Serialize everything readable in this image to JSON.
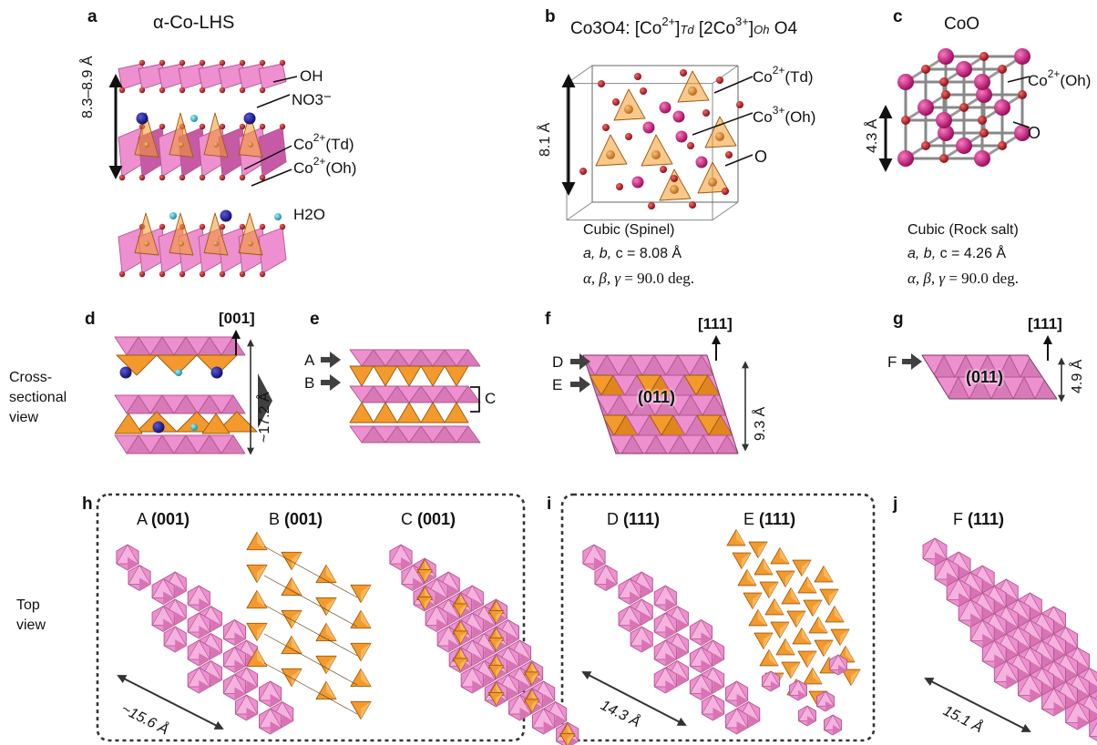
{
  "colors": {
    "pink": "#ee8fcf",
    "pink_dark": "#b0588f",
    "orange": "#f49a2c",
    "orange_dark": "#9a5a10",
    "navy": "#1b1b8c",
    "cyan": "#38b8c8",
    "magenta": "#d0177a",
    "red": "#c0141c",
    "arrow": "#333333"
  },
  "panels": {
    "a": {
      "label": "a",
      "title": "α-Co-LHS",
      "dim": "8.3–8.9 Å",
      "oh": "OH",
      "no3": "NO3",
      "no3_charge": "−",
      "co_td_sup": "2+",
      "co_td": "Co",
      "co_td_site": "(Td)",
      "co_oh_sup": "2+",
      "co_oh": "Co",
      "co_oh_site": "(Oh)",
      "h2o": "H2O"
    },
    "b": {
      "label": "b",
      "title_parts": [
        "Co3O4: [Co",
        "2+",
        "]",
        "Td",
        " [2Co",
        "3+",
        "]",
        "Oh",
        " O4"
      ],
      "dim": "8.1 Å",
      "co_td": "Co",
      "co_td_sup": "2+",
      "co_td_site": "(Td)",
      "co_oh": "Co",
      "co_oh_sup": "3+",
      "co_oh_site": "(Oh)",
      "o": "O",
      "structure": "Cubic (Spinel)",
      "abc_pre": "a, b,",
      "abc_post": " c = 8.08 Å",
      "angles": "α, β, γ",
      "angles_val": " = 90.0 deg."
    },
    "c": {
      "label": "c",
      "title": "CoO",
      "dim": "4.3 Å",
      "co": "Co",
      "co_sup": "2+",
      "co_site": "(Oh)",
      "o": "O",
      "structure": "Cubic (Rock salt)",
      "abc_pre": "a, b,",
      "abc_post": " c = 4.26 Å",
      "angles": "α, β, γ",
      "angles_val": " = 90.0 deg."
    },
    "d": {
      "label": "d",
      "dir": "[001]",
      "dim": "~17.2 Å"
    },
    "e": {
      "label": "e",
      "row_a": "A",
      "row_b": "B",
      "row_c": "C"
    },
    "f": {
      "label": "f",
      "dir": "[111]",
      "row_d": "D",
      "row_e": "E",
      "plane": "(011)",
      "dim": "9.3 Å"
    },
    "g": {
      "label": "g",
      "dir": "[111]",
      "row_f": "F",
      "plane": "(011)",
      "dim": "4.9 Å"
    },
    "h": {
      "label": "h",
      "a_name": "A",
      "a_plane": "(001)",
      "b_name": "B",
      "b_plane": "(001)",
      "c_name": "C",
      "c_plane": "(001)",
      "dim": "~15.6 Å"
    },
    "i": {
      "label": "i",
      "d_name": "D",
      "d_plane": "(111)",
      "e_name": "E",
      "e_plane": "(111)",
      "dim": "14.3 Å"
    },
    "j": {
      "label": "j",
      "f_name": "F",
      "f_plane": "(111)",
      "dim": "15.1 Å"
    }
  },
  "row_labels": {
    "cross": [
      "Cross-",
      "sectional",
      "view"
    ],
    "top": [
      "Top",
      "view"
    ]
  }
}
